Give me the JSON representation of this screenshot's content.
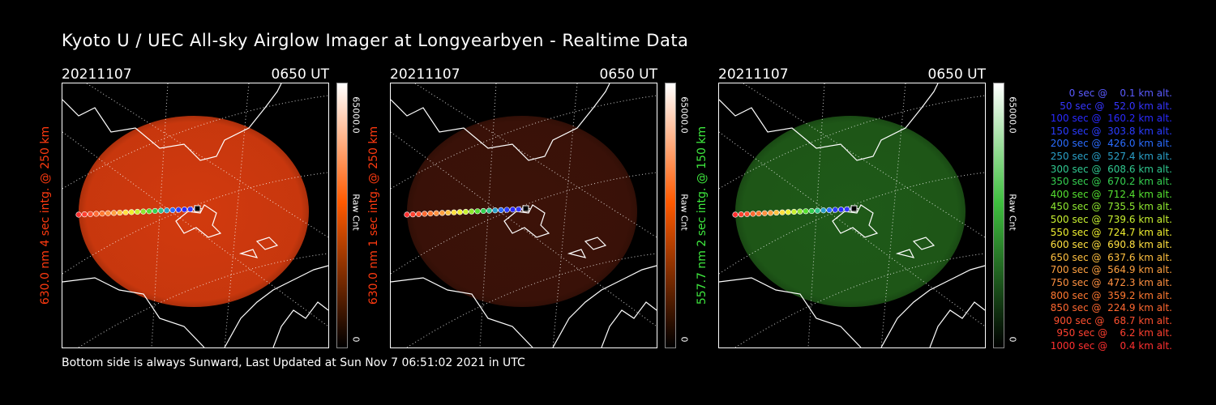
{
  "title": "Kyoto U / UEC All-sky Airglow Imager at Longyearbyen - Realtime Data",
  "footer": "Bottom side is always Sunward, Last Updated at Sun Nov  7 06:51:02 2021 in UTC",
  "panels": [
    {
      "date": "20211107",
      "time": "0650 UT",
      "side_label": "630.0 nm 4 sec intg. @ 250 km",
      "label_color": "#ff3a10",
      "cbar_top": "65000.0",
      "cbar_mid": "Raw Cnt",
      "cbar_bot": "0",
      "image_color": "#d23a0e",
      "cbar_color": "#ff5a00"
    },
    {
      "date": "20211107",
      "time": "0650 UT",
      "side_label": "630.0 nm 1 sec intg. @ 250 km",
      "label_color": "#ff3a10",
      "cbar_top": "65000.0",
      "cbar_mid": "Raw Cnt",
      "cbar_bot": "0",
      "image_color": "#3c1208",
      "cbar_color": "#ff5a00"
    },
    {
      "date": "20211107",
      "time": "0650 UT",
      "side_label": "557.7 nm 2 sec intg. @ 150 km",
      "label_color": "#3ee83e",
      "cbar_top": "65000.0",
      "cbar_mid": "Raw Cnt",
      "cbar_bot": "0",
      "image_color": "#1f5a18",
      "cbar_color": "#3fbf3f"
    }
  ],
  "legend": [
    {
      "text": "   0 sec @    0.1 km alt.",
      "color": "#5a5aff"
    },
    {
      "text": "  50 sec @   52.0 km alt.",
      "color": "#3535ff"
    },
    {
      "text": " 100 sec @  160.2 km alt.",
      "color": "#2a2aff"
    },
    {
      "text": " 150 sec @  303.8 km alt.",
      "color": "#2a3cff"
    },
    {
      "text": " 200 sec @  426.0 km alt.",
      "color": "#2a6cff"
    },
    {
      "text": " 250 sec @  527.4 km alt.",
      "color": "#2aa0c8"
    },
    {
      "text": " 300 sec @  608.6 km alt.",
      "color": "#30c890"
    },
    {
      "text": " 350 sec @  670.2 km alt.",
      "color": "#35d050"
    },
    {
      "text": " 400 sec @  712.4 km alt.",
      "color": "#55e030"
    },
    {
      "text": " 450 sec @  735.5 km alt.",
      "color": "#8ee830"
    },
    {
      "text": " 500 sec @  739.6 km alt.",
      "color": "#c8f030"
    },
    {
      "text": " 550 sec @  724.7 km alt.",
      "color": "#f0f030"
    },
    {
      "text": " 600 sec @  690.8 km alt.",
      "color": "#ffe040"
    },
    {
      "text": " 650 sec @  637.6 km alt.",
      "color": "#ffc040"
    },
    {
      "text": " 700 sec @  564.9 km alt.",
      "color": "#ffa040"
    },
    {
      "text": " 750 sec @  472.3 km alt.",
      "color": "#ff9040"
    },
    {
      "text": " 800 sec @  359.2 km alt.",
      "color": "#ff7830"
    },
    {
      "text": " 850 sec @  224.9 km alt.",
      "color": "#ff6830"
    },
    {
      "text": " 900 sec @   68.7 km alt.",
      "color": "#ff5030"
    },
    {
      "text": " 950 sec @    6.2 km alt.",
      "color": "#ff4030"
    },
    {
      "text": "1000 sec @    0.4 km alt.",
      "color": "#ff3030"
    }
  ],
  "track_colors": [
    "#5a5aff",
    "#3535ff",
    "#2a2aff",
    "#2a3cff",
    "#2a6cff",
    "#2aa0c8",
    "#30c890",
    "#35d050",
    "#55e030",
    "#8ee830",
    "#c8f030",
    "#f0f030",
    "#ffe040",
    "#ffc040",
    "#ffa040",
    "#ff9040",
    "#ff7830",
    "#ff6830",
    "#ff5030",
    "#ff4030",
    "#ff3030"
  ]
}
